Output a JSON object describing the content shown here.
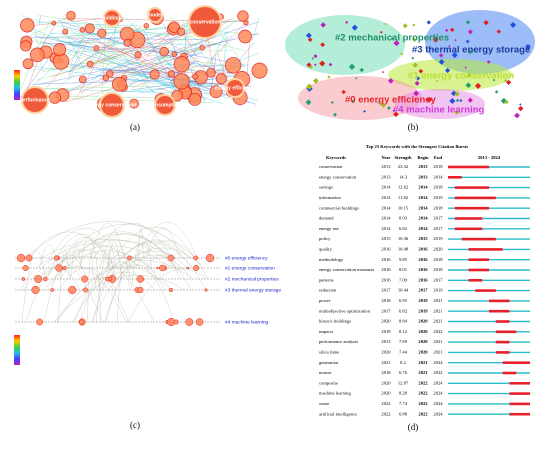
{
  "panel_a": {
    "label": "(a)",
    "node_labels": [
      "conservation",
      "performance",
      "energy conservation",
      "buildings",
      "model",
      "consumption",
      "energy efficiency"
    ]
  },
  "panel_b": {
    "label": "(b)",
    "clusters": [
      "#2 mechanical properties",
      "#3 thermal energy storage",
      "#1 energy conservation",
      "#0 energy efficiency",
      "#4 machine learning"
    ]
  },
  "panel_c": {
    "label": "(c)",
    "legend": [
      "#0 energy efficiency",
      "#1 energy conservation",
      "#2 mechanical properties",
      "#3 thermal energy storage",
      "#4 machine learning"
    ]
  },
  "panel_d": {
    "label": "(d)",
    "table": {
      "title": "Top 25 Keywords with the Strongest Citation Bursts",
      "columns": [
        "Keywords",
        "Year",
        "Strength",
        "Begin",
        "End"
      ],
      "timeline": {
        "start": 2013,
        "end": 2024,
        "label": "2013 - 2024"
      },
      "rows": [
        {
          "keyword": "conservation",
          "year": 2013,
          "strength": 23.32,
          "begin": 2013,
          "end": 2018
        },
        {
          "keyword": "energy conservation",
          "year": 2013,
          "strength": 14.3,
          "begin": 2013,
          "end": 2014
        },
        {
          "keyword": "savings",
          "year": 2014,
          "strength": 12.62,
          "begin": 2014,
          "end": 2018
        },
        {
          "keyword": "information",
          "year": 2014,
          "strength": 11.82,
          "begin": 2014,
          "end": 2019
        },
        {
          "keyword": "commercial buildings",
          "year": 2014,
          "strength": 10.15,
          "begin": 2014,
          "end": 2018
        },
        {
          "keyword": "demand",
          "year": 2014,
          "strength": 8.93,
          "begin": 2014,
          "end": 2017
        },
        {
          "keyword": "energy use",
          "year": 2014,
          "strength": 6.82,
          "begin": 2014,
          "end": 2017
        },
        {
          "keyword": "policy",
          "year": 2015,
          "strength": 10.36,
          "begin": 2015,
          "end": 2019
        },
        {
          "keyword": "quality",
          "year": 2016,
          "strength": 10.48,
          "begin": 2016,
          "end": 2020
        },
        {
          "keyword": "methodology",
          "year": 2016,
          "strength": 9.85,
          "begin": 2016,
          "end": 2018
        },
        {
          "keyword": "energy conservation measures",
          "year": 2016,
          "strength": 8.01,
          "begin": 2016,
          "end": 2018
        },
        {
          "keyword": "patterns",
          "year": 2016,
          "strength": 7.09,
          "begin": 2016,
          "end": 2017
        },
        {
          "keyword": "reduction",
          "year": 2017,
          "strength": 10.44,
          "begin": 2017,
          "end": 2019
        },
        {
          "keyword": "power",
          "year": 2018,
          "strength": 6.95,
          "begin": 2019,
          "end": 2021
        },
        {
          "keyword": "multiobjective optimization",
          "year": 2017,
          "strength": 6.82,
          "begin": 2019,
          "end": 2021
        },
        {
          "keyword": "historic buildings",
          "year": 2020,
          "strength": 8.84,
          "begin": 2020,
          "end": 2021
        },
        {
          "keyword": "impacts",
          "year": 2018,
          "strength": 8.12,
          "begin": 2020,
          "end": 2022
        },
        {
          "keyword": "performance analysis",
          "year": 2013,
          "strength": 7.69,
          "begin": 2020,
          "end": 2021
        },
        {
          "keyword": "silica fume",
          "year": 2020,
          "strength": 7.44,
          "begin": 2020,
          "end": 2021
        },
        {
          "keyword": "generation",
          "year": 2021,
          "strength": 8.2,
          "begin": 2021,
          "end": 2024
        },
        {
          "keyword": "mortar",
          "year": 2018,
          "strength": 6.76,
          "begin": 2021,
          "end": 2022
        },
        {
          "keyword": "composite",
          "year": 2020,
          "strength": 12.87,
          "begin": 2022,
          "end": 2024
        },
        {
          "keyword": "machine learning",
          "year": 2020,
          "strength": 8.28,
          "begin": 2022,
          "end": 2024
        },
        {
          "keyword": "waste",
          "year": 2022,
          "strength": 7.74,
          "begin": 2022,
          "end": 2024
        },
        {
          "keyword": "artificial intelligence",
          "year": 2022,
          "strength": 6.88,
          "begin": 2022,
          "end": 2024
        }
      ]
    }
  }
}
